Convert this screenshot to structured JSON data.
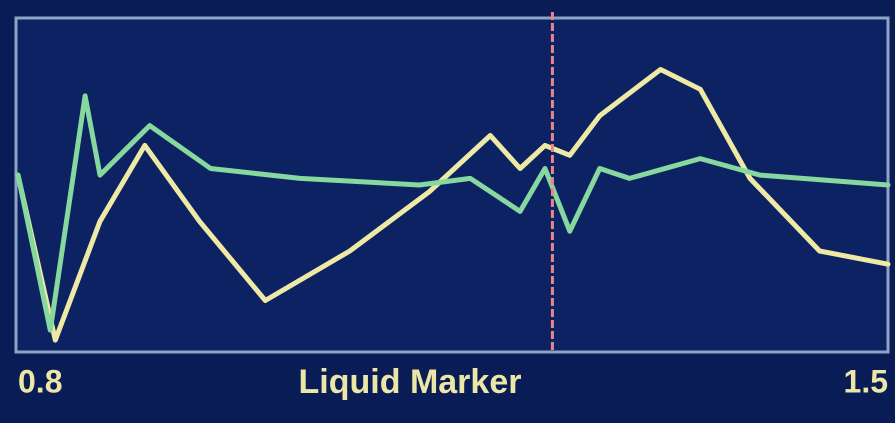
{
  "chart_data": {
    "type": "line",
    "xlabel": "Liquid Marker",
    "xlim": [
      0.8,
      1.5
    ],
    "xticks": [
      {
        "value": 0.8,
        "label": "0.8"
      },
      1.5
    ],
    "ylim": [
      0,
      100
    ],
    "marker_x": 1.23,
    "marker_color": "#e8848a",
    "series": [
      {
        "color": "#eee9a4",
        "x": [
          0.8,
          0.83,
          0.866,
          0.902,
          0.946,
          0.999,
          1.067,
          1.131,
          1.18,
          1.204,
          1.224,
          1.244,
          1.268,
          1.317,
          1.349,
          1.389,
          1.445,
          1.5
        ],
        "values": [
          53,
          3,
          39,
          62,
          39,
          15,
          30,
          48,
          65,
          55,
          62,
          59,
          71,
          85,
          79,
          52,
          30,
          26
        ]
      },
      {
        "color": "#86d89e",
        "x": [
          0.8,
          0.826,
          0.854,
          0.866,
          0.906,
          0.955,
          1.027,
          1.123,
          1.164,
          1.204,
          1.224,
          1.244,
          1.268,
          1.292,
          1.349,
          1.397,
          1.5
        ],
        "values": [
          53,
          6,
          77,
          53,
          68,
          55,
          52,
          50,
          52,
          42,
          55,
          36,
          55,
          52,
          58,
          53,
          50
        ]
      }
    ]
  }
}
